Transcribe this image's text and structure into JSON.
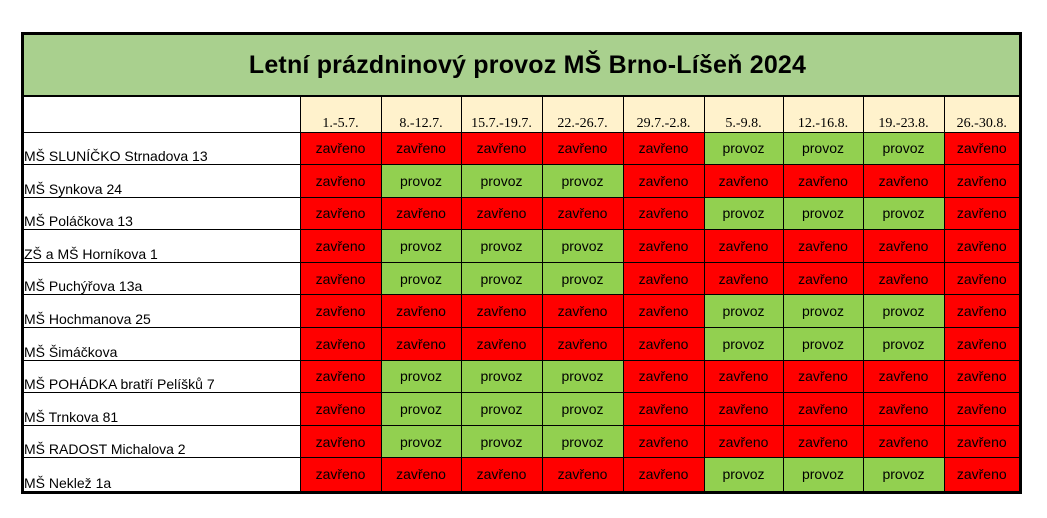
{
  "title": "Letní prázdninový provoz MŠ Brno-Líšeň 2024",
  "weeks": [
    "1.-5.7.",
    "8.-12.7.",
    "15.7.-19.7.",
    "22.-26.7.",
    "29.7.-2.8.",
    "5.-9.8.",
    "12.-16.8.",
    "19.-23.8.",
    "26.-30.8."
  ],
  "status_labels": {
    "closed": "zavřeno",
    "open": "provoz"
  },
  "colors": {
    "title_bg": "#a9d08e",
    "header_bg": "#fff2cc",
    "closed": "#ff0000",
    "open": "#92d050"
  },
  "rows": [
    {
      "name": "MŠ SLUNÍČKO Strnadova 13",
      "status": [
        "closed",
        "closed",
        "closed",
        "closed",
        "closed",
        "open",
        "open",
        "open",
        "closed"
      ]
    },
    {
      "name": "MŠ Synkova 24",
      "status": [
        "closed",
        "open",
        "open",
        "open",
        "closed",
        "closed",
        "closed",
        "closed",
        "closed"
      ]
    },
    {
      "name": "MŠ Poláčkova 13",
      "status": [
        "closed",
        "closed",
        "closed",
        "closed",
        "closed",
        "open",
        "open",
        "open",
        "closed"
      ]
    },
    {
      "name": "ZŠ a MŠ Horníkova 1",
      "status": [
        "closed",
        "open",
        "open",
        "open",
        "closed",
        "closed",
        "closed",
        "closed",
        "closed"
      ]
    },
    {
      "name": "MŠ Puchýřova 13a",
      "status": [
        "closed",
        "open",
        "open",
        "open",
        "closed",
        "closed",
        "closed",
        "closed",
        "closed"
      ]
    },
    {
      "name": "MŠ Hochmanova 25",
      "status": [
        "closed",
        "closed",
        "closed",
        "closed",
        "closed",
        "open",
        "open",
        "open",
        "closed"
      ]
    },
    {
      "name": "MŠ Šimáčkova",
      "status": [
        "closed",
        "closed",
        "closed",
        "closed",
        "closed",
        "open",
        "open",
        "open",
        "closed"
      ]
    },
    {
      "name": "MŠ POHÁDKA bratří Pelíšků 7",
      "status": [
        "closed",
        "open",
        "open",
        "open",
        "closed",
        "closed",
        "closed",
        "closed",
        "closed"
      ]
    },
    {
      "name": "MŠ Trnkova 81",
      "status": [
        "closed",
        "open",
        "open",
        "open",
        "closed",
        "closed",
        "closed",
        "closed",
        "closed"
      ]
    },
    {
      "name": "MŠ RADOST Michalova 2",
      "status": [
        "closed",
        "open",
        "open",
        "open",
        "closed",
        "closed",
        "closed",
        "closed",
        "closed"
      ]
    },
    {
      "name": "MŠ Neklež 1a",
      "status": [
        "closed",
        "closed",
        "closed",
        "closed",
        "closed",
        "open",
        "open",
        "open",
        "closed"
      ]
    }
  ]
}
